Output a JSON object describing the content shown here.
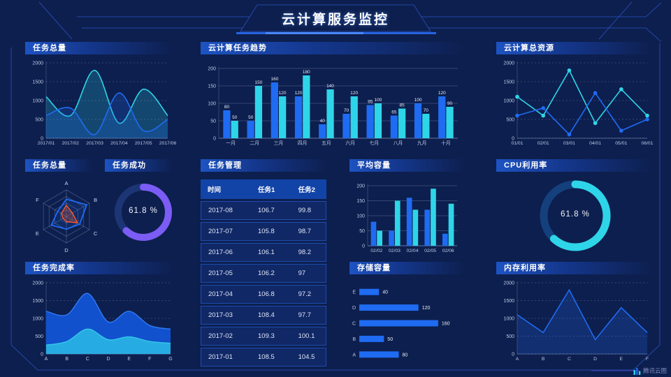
{
  "header": {
    "title": "云计算服务监控"
  },
  "watermark": {
    "label": "腾讯云图",
    "icon": "tencent-cloud-chart-logo"
  },
  "colors": {
    "background": "#0d1f4e",
    "blue": "#1f6bf2",
    "cyan": "#2ed5e8",
    "purple": "#7b5cf4",
    "orange": "#ff5a2b",
    "frame": "#2c55c6",
    "axis_text": "#bcc9e6",
    "grid": "rgba(158,173,210,0.28)"
  },
  "chart_data": [
    {
      "id": "tasks_total",
      "type": "line",
      "title": "任务总量",
      "smooth": true,
      "area": true,
      "grid": "dashed",
      "x": [
        "2017/01",
        "2017/02",
        "2017/03",
        "2017/04",
        "2017/05",
        "2017/06"
      ],
      "ylim": [
        0,
        2000
      ],
      "yticks": [
        0,
        500,
        1000,
        1500,
        2000
      ],
      "series": [
        {
          "name": "series-cyan",
          "color": "#2ed5e8",
          "values": [
            1100,
            600,
            1800,
            400,
            1300,
            600
          ]
        },
        {
          "name": "series-blue",
          "color": "#1f6bf2",
          "values": [
            600,
            800,
            100,
            1200,
            200,
            500
          ]
        }
      ]
    },
    {
      "id": "task_trend",
      "type": "bar",
      "title": "云计算任务趋势",
      "categories": [
        "一月",
        "二月",
        "三月",
        "四月",
        "五月",
        "六月",
        "七月",
        "八月",
        "九月",
        "十月"
      ],
      "ylim": [
        0,
        200
      ],
      "yticks": [
        0,
        50,
        100,
        150,
        200
      ],
      "value_labels": true,
      "series": [
        {
          "name": "series-blue",
          "color": "#1f6bf2",
          "values": [
            80,
            50,
            160,
            120,
            40,
            70,
            95,
            65,
            100,
            120
          ]
        },
        {
          "name": "series-cyan",
          "color": "#2ed5e8",
          "values": [
            50,
            150,
            120,
            180,
            140,
            120,
            100,
            85,
            70,
            90
          ]
        }
      ]
    },
    {
      "id": "total_resources",
      "type": "line",
      "title": "云计算总资源",
      "smooth": false,
      "markers": true,
      "grid": "dashed",
      "x": [
        "01/01",
        "02/01",
        "03/01",
        "04/01",
        "05/01",
        "06/01"
      ],
      "ylim": [
        0,
        2000
      ],
      "yticks": [
        0,
        500,
        1000,
        1500,
        2000
      ],
      "series": [
        {
          "name": "series-cyan",
          "color": "#2ed5e8",
          "values": [
            1100,
            600,
            1800,
            400,
            1300,
            600
          ]
        },
        {
          "name": "series-blue",
          "color": "#1f6bf2",
          "values": [
            600,
            800,
            100,
            1200,
            200,
            500
          ]
        }
      ]
    },
    {
      "id": "task_radar",
      "type": "radar",
      "title": "任务总量",
      "axes": [
        "A",
        "B",
        "C",
        "D",
        "E",
        "F"
      ],
      "max": 100,
      "series": [
        {
          "name": "series-blue",
          "color": "#1f6bf2",
          "values": [
            65,
            88,
            58,
            48,
            66,
            38
          ]
        },
        {
          "name": "series-orange",
          "color": "#ff5a2b",
          "values": [
            42,
            26,
            48,
            20,
            15,
            22
          ]
        }
      ]
    },
    {
      "id": "task_success",
      "type": "donut",
      "title": "任务成功",
      "value": 61.8,
      "label": "61.8 %",
      "color": "#7b5cf4",
      "track": "#1c3575"
    },
    {
      "id": "task_table",
      "type": "table",
      "title": "任务管理",
      "columns": [
        "时间",
        "任务1",
        "任务2"
      ],
      "rows": [
        [
          "2017-08",
          "106.7",
          "99.8"
        ],
        [
          "2017-07",
          "105.8",
          "98.7"
        ],
        [
          "2017-06",
          "106.1",
          "98.2"
        ],
        [
          "2017-05",
          "106.2",
          "97"
        ],
        [
          "2017-04",
          "106.8",
          "97.2"
        ],
        [
          "2017-03",
          "108.4",
          "97.7"
        ],
        [
          "2017-02",
          "109.3",
          "100.1"
        ],
        [
          "2017-01",
          "108.5",
          "104.5"
        ]
      ]
    },
    {
      "id": "avg_capacity",
      "type": "bar",
      "title": "平均容量",
      "categories": [
        "02/02",
        "02/03",
        "02/04",
        "02/05",
        "02/06"
      ],
      "ylim": [
        0,
        200
      ],
      "yticks": [
        0,
        50,
        100,
        150,
        200
      ],
      "value_labels": false,
      "series": [
        {
          "name": "series-blue",
          "color": "#1f6bf2",
          "values": [
            80,
            50,
            160,
            120,
            40
          ]
        },
        {
          "name": "series-cyan",
          "color": "#2ed5e8",
          "values": [
            50,
            150,
            120,
            190,
            140
          ]
        }
      ]
    },
    {
      "id": "cpu",
      "type": "donut",
      "title": "CPU利用率",
      "value": 61.8,
      "label": "61.8 %",
      "color": "#2ed5e8",
      "track": "#14407e"
    },
    {
      "id": "completion",
      "type": "area",
      "title": "任务完成率",
      "smooth": true,
      "grid": "dashed",
      "x": [
        "A",
        "B",
        "C",
        "D",
        "E",
        "F",
        "G"
      ],
      "ylim": [
        0,
        2000
      ],
      "yticks": [
        0,
        500,
        1000,
        1500,
        2000
      ],
      "series": [
        {
          "name": "series-blue",
          "line": "#2f7bf5",
          "fill": "#1256d8",
          "values": [
            1200,
            1100,
            1700,
            900,
            1200,
            800,
            700
          ]
        },
        {
          "name": "series-cyan",
          "line": "#35c8ea",
          "fill": "#28b4e4",
          "values": [
            250,
            350,
            700,
            400,
            480,
            350,
            300
          ]
        }
      ]
    },
    {
      "id": "storage",
      "type": "hbar",
      "title": "存储容量",
      "categories": [
        "E",
        "D",
        "C",
        "B",
        "A"
      ],
      "values": [
        40,
        120,
        160,
        50,
        80
      ],
      "xmax": 170,
      "color": "#1f6bf2"
    },
    {
      "id": "memory",
      "type": "line",
      "title": "内存利用率",
      "smooth": false,
      "area": true,
      "grid": "dashed",
      "x": [
        "A",
        "B",
        "C",
        "D",
        "E",
        "F"
      ],
      "ylim": [
        0,
        2000
      ],
      "yticks": [
        0,
        500,
        1000,
        1500,
        2000
      ],
      "series": [
        {
          "name": "series-blue",
          "color": "#1f6bf2",
          "values": [
            1100,
            600,
            1800,
            400,
            1300,
            600
          ]
        }
      ]
    }
  ]
}
